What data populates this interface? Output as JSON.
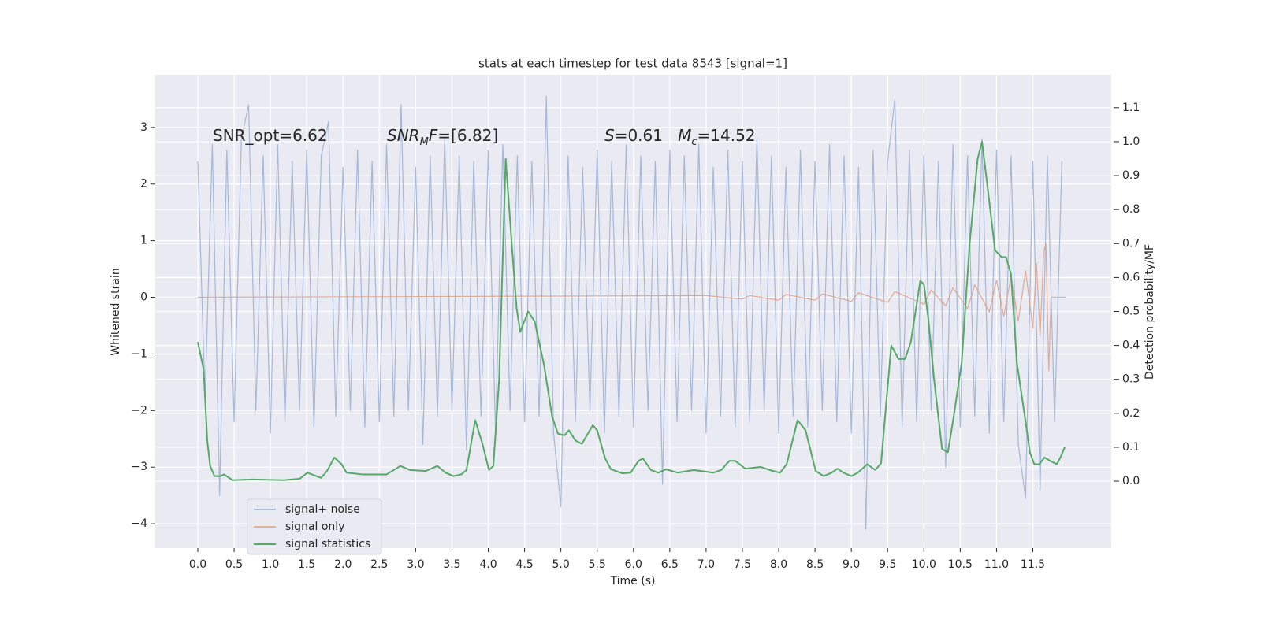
{
  "chart_data": {
    "type": "line",
    "title": "stats at each timestep for test data 8543 [signal=1]",
    "x_label": "Time (s)",
    "y_label": "Whitened strain",
    "y2_label": "Detection probability/MF",
    "grid": true,
    "legend_position": "lower left",
    "xlim": [
      -0.586,
      12.58
    ],
    "ylim": [
      -4.43,
      3.93
    ],
    "y2lim": [
      -0.197,
      1.197
    ],
    "xticks": [
      {
        "value": 0,
        "label": "0.0"
      },
      0.5,
      {
        "value": 1,
        "label": "1.0"
      },
      1.5,
      {
        "value": 2,
        "label": "2.0"
      },
      2.5,
      {
        "value": 3,
        "label": "3.0"
      },
      3.5,
      {
        "value": 4,
        "label": "4.0"
      },
      4.5,
      {
        "value": 5,
        "label": "5.0"
      },
      5.5,
      {
        "value": 6,
        "label": "6.0"
      },
      6.5,
      {
        "value": 7,
        "label": "7.0"
      },
      7.5,
      {
        "value": 8,
        "label": "8.0"
      },
      8.5,
      {
        "value": 9,
        "label": "9.0"
      },
      9.5,
      {
        "value": 10,
        "label": "10.0"
      },
      10.5,
      {
        "value": 11,
        "label": "11.0"
      },
      11.5
    ],
    "yticks": [
      {
        "value": -4,
        "label": "−4"
      },
      {
        "value": -3,
        "label": "−3"
      },
      {
        "value": -2,
        "label": "−2"
      },
      {
        "value": -1,
        "label": "−1"
      },
      0,
      1,
      2,
      3
    ],
    "y2ticks": [
      {
        "value": 0,
        "label": "0.0"
      },
      0.1,
      0.2,
      0.3,
      0.4,
      0.5,
      0.6,
      0.7,
      0.8,
      0.9,
      {
        "value": 1,
        "label": "1.0"
      },
      1.1
    ],
    "annotations": [
      {
        "parts": [
          {
            "text": "SNR_opt=6.62"
          }
        ]
      },
      {
        "parts": [
          {
            "text": "SNR",
            "italic": true
          },
          {
            "text": "M",
            "italic": true,
            "sub": true
          },
          {
            "text": "F",
            "italic": true
          },
          {
            "text": "=[6.82]"
          }
        ]
      },
      {
        "parts": [
          {
            "text": "S",
            "italic": true
          },
          {
            "text": "=0.61   "
          },
          {
            "text": "M",
            "italic": true
          },
          {
            "text": "c",
            "italic": true,
            "sub": true
          },
          {
            "text": "=14.52"
          }
        ]
      }
    ],
    "series": [
      {
        "name": "signal+ noise",
        "color": "#9aaed4",
        "x": [
          0,
          0.1,
          0.2,
          0.3,
          0.4,
          0.5,
          0.6,
          0.7,
          0.8,
          0.9,
          1,
          1.1,
          1.2,
          1.3,
          1.4,
          1.5,
          1.6,
          1.7,
          1.8,
          1.9,
          2,
          2.1,
          2.2,
          2.3,
          2.4,
          2.5,
          2.6,
          2.7,
          2.8,
          2.9,
          3,
          3.1,
          3.2,
          3.3,
          3.4,
          3.5,
          3.6,
          3.7,
          3.8,
          3.9,
          4,
          4.1,
          4.2,
          4.3,
          4.4,
          4.5,
          4.6,
          4.7,
          4.8,
          4.9,
          5,
          5.1,
          5.2,
          5.3,
          5.4,
          5.5,
          5.6,
          5.7,
          5.8,
          5.9,
          6,
          6.1,
          6.2,
          6.3,
          6.4,
          6.5,
          6.6,
          6.7,
          6.8,
          6.9,
          7,
          7.1,
          7.2,
          7.3,
          7.4,
          7.5,
          7.6,
          7.7,
          7.8,
          7.9,
          8,
          8.1,
          8.2,
          8.3,
          8.4,
          8.5,
          8.6,
          8.7,
          8.8,
          8.9,
          9,
          9.1,
          9.2,
          9.3,
          9.4,
          9.5,
          9.6,
          9.7,
          9.8,
          9.9,
          10,
          10.1,
          10.2,
          10.3,
          10.4,
          10.5,
          10.6,
          10.7,
          10.8,
          10.9,
          11,
          11.1,
          11.2,
          11.3,
          11.4,
          11.5,
          11.6,
          11.7,
          11.8,
          11.9
        ],
        "values": [
          2.4,
          -1.8,
          2.7,
          -3.5,
          2.6,
          -2.2,
          2.8,
          3.4,
          -2.0,
          2.5,
          -2.4,
          2.7,
          -2.2,
          2.4,
          -2.0,
          2.6,
          -2.3,
          2.5,
          3.1,
          -2.1,
          2.3,
          -2.0,
          2.6,
          -2.3,
          2.4,
          -2.2,
          2.7,
          -2.1,
          3.4,
          -2.0,
          2.3,
          -2.6,
          2.5,
          -2.1,
          2.8,
          -2.0,
          2.5,
          -2.7,
          2.4,
          -2.1,
          2.6,
          -2.4,
          2.7,
          -2.0,
          2.5,
          -2.2,
          2.4,
          -2.1,
          3.55,
          -2.4,
          -3.7,
          2.5,
          -2.2,
          2.3,
          -2.0,
          2.6,
          -2.4,
          2.4,
          -2.1,
          2.7,
          -2.3,
          2.5,
          -2.0,
          2.4,
          -3.3,
          2.6,
          -2.2,
          2.5,
          -2.0,
          2.7,
          -2.4,
          2.3,
          -2.1,
          2.6,
          -2.3,
          2.4,
          -2.2,
          2.8,
          -2.0,
          2.5,
          -2.4,
          2.3,
          -2.1,
          2.6,
          -2.3,
          2.4,
          -2.0,
          2.7,
          -2.2,
          2.5,
          -2.4,
          2.3,
          -4.1,
          2.6,
          -2.1,
          2.4,
          3.5,
          -2.3,
          2.6,
          -2.2,
          2.5,
          -2.0,
          2.4,
          -3.0,
          2.7,
          -2.3,
          2.5,
          -2.1,
          2.8,
          -2.4,
          2.6,
          -2.2,
          2.5,
          -2.6,
          -3.55,
          2.4,
          -3.4,
          2.5,
          -2.2,
          2.4
        ]
      },
      {
        "name": "signal only",
        "color": "#dd9f85",
        "x": [
          0,
          7,
          7.5,
          7.6,
          8,
          8.1,
          8.5,
          8.6,
          9,
          9.1,
          9.5,
          9.6,
          10,
          10.1,
          10.3,
          10.4,
          10.6,
          10.7,
          10.9,
          11,
          11.1,
          11.2,
          11.3,
          11.4,
          11.5,
          11.55,
          11.6,
          11.65,
          11.68,
          11.72,
          11.75,
          11.95
        ],
        "values": [
          0,
          0.03,
          -0.03,
          0.03,
          -0.05,
          0.05,
          -0.05,
          0.06,
          -0.07,
          0.08,
          -0.09,
          0.1,
          -0.12,
          0.13,
          -0.15,
          0.17,
          -0.2,
          0.22,
          -0.26,
          0.3,
          -0.33,
          0.37,
          -0.42,
          0.47,
          -0.55,
          0.6,
          -0.68,
          0.8,
          0.95,
          -1.3,
          0,
          0
        ]
      },
      {
        "name": "signal statistics",
        "color": "#55a868",
        "axis": "y2",
        "x": [
          0,
          0.08,
          0.13,
          0.17,
          0.23,
          0.31,
          0.36,
          0.48,
          0.75,
          1.18,
          1.4,
          1.51,
          1.62,
          1.7,
          1.78,
          1.88,
          1.98,
          2.05,
          2.27,
          2.6,
          2.79,
          2.92,
          3.14,
          3.3,
          3.41,
          3.52,
          3.63,
          3.7,
          3.82,
          3.92,
          4.01,
          4.07,
          4.15,
          4.24,
          4.33,
          4.39,
          4.44,
          4.55,
          4.64,
          4.77,
          4.88,
          4.96,
          5.05,
          5.11,
          5.2,
          5.29,
          5.44,
          5.5,
          5.61,
          5.69,
          5.85,
          5.96,
          6.07,
          6.13,
          6.24,
          6.34,
          6.45,
          6.61,
          6.83,
          7.1,
          7.21,
          7.32,
          7.4,
          7.54,
          7.75,
          7.92,
          8.02,
          8.11,
          8.26,
          8.37,
          8.51,
          8.62,
          8.73,
          8.81,
          8.89,
          9,
          9.09,
          9.22,
          9.33,
          9.41,
          9.55,
          9.65,
          9.74,
          9.82,
          9.95,
          10,
          10.06,
          10.14,
          10.25,
          10.33,
          10.41,
          10.52,
          10.63,
          10.74,
          10.8,
          10.88,
          10.98,
          11.07,
          11.13,
          11.2,
          11.28,
          11.39,
          11.46,
          11.52,
          11.59,
          11.66,
          11.74,
          11.83,
          11.88,
          11.94
        ],
        "values": [
          0.41,
          0.33,
          0.12,
          0.045,
          0.015,
          0.015,
          0.02,
          0.003,
          0.005,
          0.003,
          0.007,
          0.025,
          0.016,
          0.01,
          0.03,
          0.07,
          0.05,
          0.025,
          0.02,
          0.02,
          0.045,
          0.033,
          0.03,
          0.045,
          0.025,
          0.015,
          0.02,
          0.033,
          0.18,
          0.11,
          0.033,
          0.045,
          0.3,
          0.95,
          0.68,
          0.51,
          0.44,
          0.5,
          0.47,
          0.34,
          0.19,
          0.14,
          0.135,
          0.15,
          0.12,
          0.11,
          0.165,
          0.15,
          0.067,
          0.035,
          0.023,
          0.025,
          0.06,
          0.067,
          0.033,
          0.025,
          0.035,
          0.025,
          0.033,
          0.025,
          0.033,
          0.06,
          0.06,
          0.037,
          0.042,
          0.03,
          0.025,
          0.05,
          0.18,
          0.15,
          0.03,
          0.015,
          0.025,
          0.037,
          0.025,
          0.015,
          0.025,
          0.05,
          0.033,
          0.053,
          0.4,
          0.36,
          0.36,
          0.41,
          0.59,
          0.58,
          0.48,
          0.3,
          0.095,
          0.085,
          0.19,
          0.35,
          0.7,
          0.95,
          1.0,
          0.86,
          0.68,
          0.66,
          0.66,
          0.61,
          0.35,
          0.19,
          0.085,
          0.05,
          0.05,
          0.07,
          0.06,
          0.05,
          0.07,
          0.1
        ]
      }
    ]
  }
}
